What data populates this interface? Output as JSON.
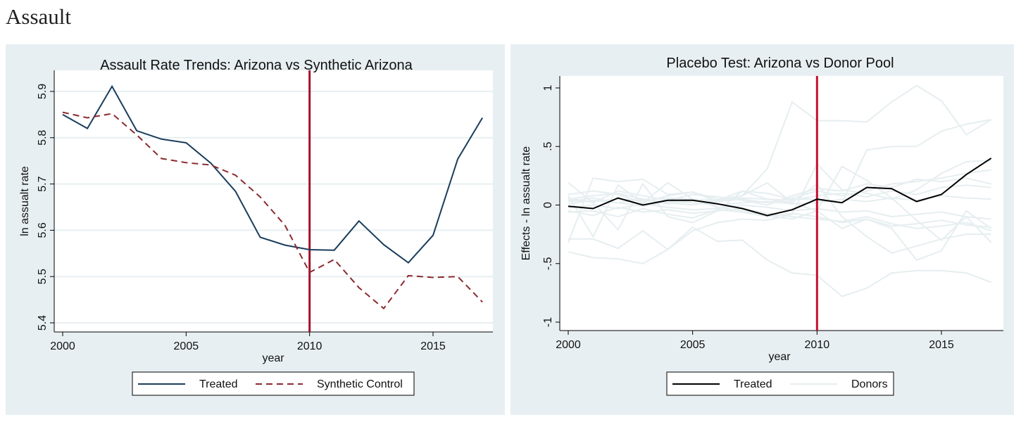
{
  "page_title": "Assault",
  "chart_data": [
    {
      "type": "line",
      "title": "Assault Rate Trends: Arizona vs Synthetic Arizona",
      "xlabel": "year",
      "ylabel": "ln assualt rate",
      "xlim": [
        2000,
        2017
      ],
      "ylim": [
        5.4,
        5.9
      ],
      "xticks": [
        2000,
        2005,
        2010,
        2015
      ],
      "yticks": [
        "5.4",
        "5.5",
        "5.6",
        "5.7",
        "5.8",
        "5.9"
      ],
      "grid": true,
      "legend": "bottom",
      "vline": 2010,
      "vline_color": "#a3102c",
      "background": "#e8eff2",
      "x": [
        2000,
        2001,
        2002,
        2003,
        2004,
        2005,
        2006,
        2007,
        2008,
        2009,
        2010,
        2011,
        2012,
        2013,
        2014,
        2015,
        2016,
        2017
      ],
      "series": [
        {
          "name": "Treated",
          "color": "#1a3d5c",
          "style": "solid",
          "values": [
            5.85,
            5.82,
            5.911,
            5.815,
            5.797,
            5.789,
            5.745,
            5.684,
            5.585,
            5.568,
            5.558,
            5.557,
            5.62,
            5.569,
            5.53,
            5.589,
            5.754,
            5.843
          ]
        },
        {
          "name": "Synthetic Control",
          "color": "#8b2a2e",
          "style": "dashed",
          "values": [
            5.855,
            5.843,
            5.852,
            5.806,
            5.755,
            5.746,
            5.741,
            5.719,
            5.672,
            5.611,
            5.509,
            5.537,
            5.476,
            5.431,
            5.502,
            5.498,
            5.5,
            5.445
          ]
        }
      ]
    },
    {
      "type": "line",
      "title": "Placebo Test: Arizona vs Donor Pool",
      "xlabel": "year",
      "ylabel": "Effects - ln assualt rate",
      "xlim": [
        2000,
        2017
      ],
      "ylim": [
        -1,
        1
      ],
      "xticks": [
        2000,
        2005,
        2010,
        2015
      ],
      "yticks": [
        "-1",
        "-.5",
        "0",
        ".5",
        "1"
      ],
      "grid": false,
      "legend": "bottom",
      "vline": 2010,
      "vline_color": "#c8102e",
      "background": "#e8eff2",
      "x": [
        2000,
        2001,
        2002,
        2003,
        2004,
        2005,
        2006,
        2007,
        2008,
        2009,
        2010,
        2011,
        2012,
        2013,
        2014,
        2015,
        2016,
        2017
      ],
      "series": [
        {
          "name": "Treated",
          "color": "#000000",
          "style": "solid",
          "values": [
            -0.01,
            -0.03,
            0.06,
            0.0,
            0.04,
            0.04,
            0.01,
            -0.03,
            -0.09,
            -0.04,
            0.05,
            0.02,
            0.15,
            0.14,
            0.03,
            0.09,
            0.26,
            0.4
          ]
        },
        {
          "name": "Donors",
          "color": "#e6eef0",
          "style": "solid",
          "group": [
            [
              0.03,
              0.06,
              0.02,
              0.05,
              0.01,
              0.04,
              0.03,
              0.08,
              0.31,
              0.88,
              0.72,
              0.72,
              0.71,
              0.88,
              1.02,
              0.89,
              0.6,
              0.73
            ],
            [
              0.05,
              0.08,
              0.1,
              0.05,
              0.02,
              0.0,
              0.04,
              0.12,
              0.1,
              0.05,
              0.05,
              0.02,
              0.47,
              0.5,
              0.5,
              0.63,
              0.69,
              0.73
            ],
            [
              -0.4,
              -0.45,
              -0.46,
              -0.5,
              -0.38,
              -0.19,
              -0.31,
              -0.3,
              -0.47,
              -0.58,
              -0.6,
              -0.78,
              -0.71,
              -0.58,
              -0.56,
              -0.56,
              -0.58,
              -0.66
            ],
            [
              -0.29,
              -0.29,
              -0.37,
              -0.22,
              -0.38,
              -0.22,
              -0.15,
              -0.12,
              -0.13,
              -0.08,
              0.35,
              0.13,
              0.1,
              0.05,
              0.13,
              0.27,
              0.37,
              0.38
            ],
            [
              -0.32,
              0.23,
              0.2,
              0.22,
              0.09,
              0.11,
              0.05,
              0.08,
              0.19,
              0.02,
              -0.05,
              0.33,
              0.21,
              0.06,
              -0.13,
              -0.3,
              -0.1,
              -0.32
            ],
            [
              0.19,
              0.02,
              -0.21,
              0.18,
              -0.1,
              -0.15,
              -0.05,
              0.12,
              0.05,
              0.02,
              0.18,
              -0.1,
              -0.27,
              -0.41,
              -0.35,
              -0.29,
              -0.25,
              -0.25
            ],
            [
              0.08,
              -0.27,
              0.17,
              0.02,
              0.19,
              0.05,
              -0.02,
              -0.05,
              -0.09,
              -0.12,
              -0.05,
              -0.2,
              -0.12,
              -0.2,
              -0.47,
              -0.39,
              -0.05,
              -0.2
            ],
            [
              0.09,
              0.12,
              0.09,
              0.02,
              0.08,
              0.11,
              0.03,
              0.05,
              0.02,
              0.06,
              0.12,
              0.08,
              0.12,
              0.18,
              0.2,
              0.23,
              0.27,
              0.3
            ],
            [
              -0.06,
              -0.05,
              -0.1,
              -0.03,
              -0.08,
              -0.11,
              -0.04,
              -0.06,
              -0.1,
              -0.07,
              -0.1,
              -0.15,
              -0.12,
              -0.18,
              -0.16,
              -0.13,
              -0.17,
              -0.19
            ],
            [
              0.04,
              0.03,
              0.05,
              0.04,
              0.06,
              0.05,
              0.04,
              0.06,
              0.05,
              0.04,
              0.08,
              0.1,
              0.07,
              0.12,
              0.09,
              0.15,
              0.17,
              0.15
            ],
            [
              -0.02,
              0.0,
              -0.03,
              0.01,
              -0.02,
              -0.04,
              -0.03,
              0.0,
              -0.02,
              -0.05,
              -0.03,
              -0.06,
              -0.05,
              -0.1,
              -0.08,
              -0.06,
              -0.1,
              -0.12
            ],
            [
              0.01,
              0.04,
              0.02,
              -0.01,
              0.03,
              0.02,
              0.0,
              0.02,
              0.03,
              0.01,
              0.02,
              0.05,
              0.03,
              0.06,
              0.04,
              0.08,
              0.06,
              0.05
            ],
            [
              -0.05,
              -0.09,
              -0.02,
              -0.06,
              -0.04,
              -0.07,
              -0.05,
              -0.03,
              -0.07,
              -0.1,
              -0.12,
              -0.14,
              -0.1,
              -0.16,
              -0.2,
              -0.18,
              -0.15,
              -0.22
            ],
            [
              0.06,
              0.02,
              0.12,
              0.08,
              0.04,
              0.09,
              0.07,
              0.04,
              0.0,
              0.08,
              0.14,
              0.12,
              0.18,
              0.15,
              0.22,
              0.2,
              0.23,
              0.18
            ]
          ]
        }
      ]
    }
  ]
}
